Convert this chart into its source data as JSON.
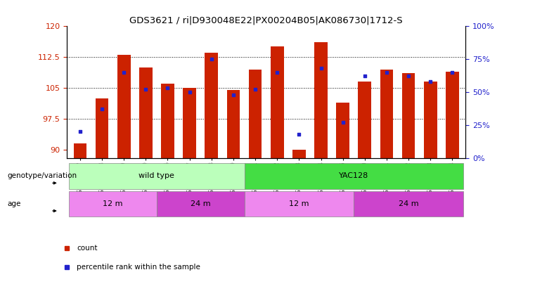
{
  "title": "GDS3621 / ri|D930048E22|PX00204B05|AK086730|1712-S",
  "samples": [
    "GSM491327",
    "GSM491328",
    "GSM491329",
    "GSM491330",
    "GSM491336",
    "GSM491337",
    "GSM491338",
    "GSM491339",
    "GSM491331",
    "GSM491332",
    "GSM491333",
    "GSM491334",
    "GSM491335",
    "GSM491340",
    "GSM491341",
    "GSM491342",
    "GSM491343",
    "GSM491344"
  ],
  "bar_values": [
    91.5,
    102.5,
    113.0,
    110.0,
    106.0,
    105.0,
    113.5,
    104.5,
    109.5,
    115.0,
    90.0,
    116.0,
    101.5,
    106.5,
    109.5,
    108.5,
    106.5,
    109.0
  ],
  "percentile_values": [
    20,
    37,
    65,
    52,
    53,
    50,
    75,
    48,
    52,
    65,
    18,
    68,
    27,
    62,
    65,
    62,
    58,
    65
  ],
  "ylim_left": [
    88,
    120
  ],
  "ylim_right": [
    0,
    100
  ],
  "yticks_left": [
    90,
    97.5,
    105,
    112.5,
    120
  ],
  "yticks_right": [
    0,
    25,
    50,
    75,
    100
  ],
  "bar_color": "#cc2200",
  "dot_color": "#2222cc",
  "grid_color": "#000000",
  "title_fontsize": 9.5,
  "genotype_groups": [
    {
      "label": "wild type",
      "start": 0,
      "end": 8,
      "color": "#bbffbb"
    },
    {
      "label": "YAC128",
      "start": 8,
      "end": 18,
      "color": "#44dd44"
    }
  ],
  "age_groups": [
    {
      "label": "12 m",
      "start": 0,
      "end": 4,
      "color": "#ee88ee"
    },
    {
      "label": "24 m",
      "start": 4,
      "end": 8,
      "color": "#cc44cc"
    },
    {
      "label": "12 m",
      "start": 8,
      "end": 13,
      "color": "#ee88ee"
    },
    {
      "label": "24 m",
      "start": 13,
      "end": 18,
      "color": "#cc44cc"
    }
  ],
  "legend_items": [
    {
      "label": "count",
      "color": "#cc2200"
    },
    {
      "label": "percentile rank within the sample",
      "color": "#2222cc"
    }
  ]
}
